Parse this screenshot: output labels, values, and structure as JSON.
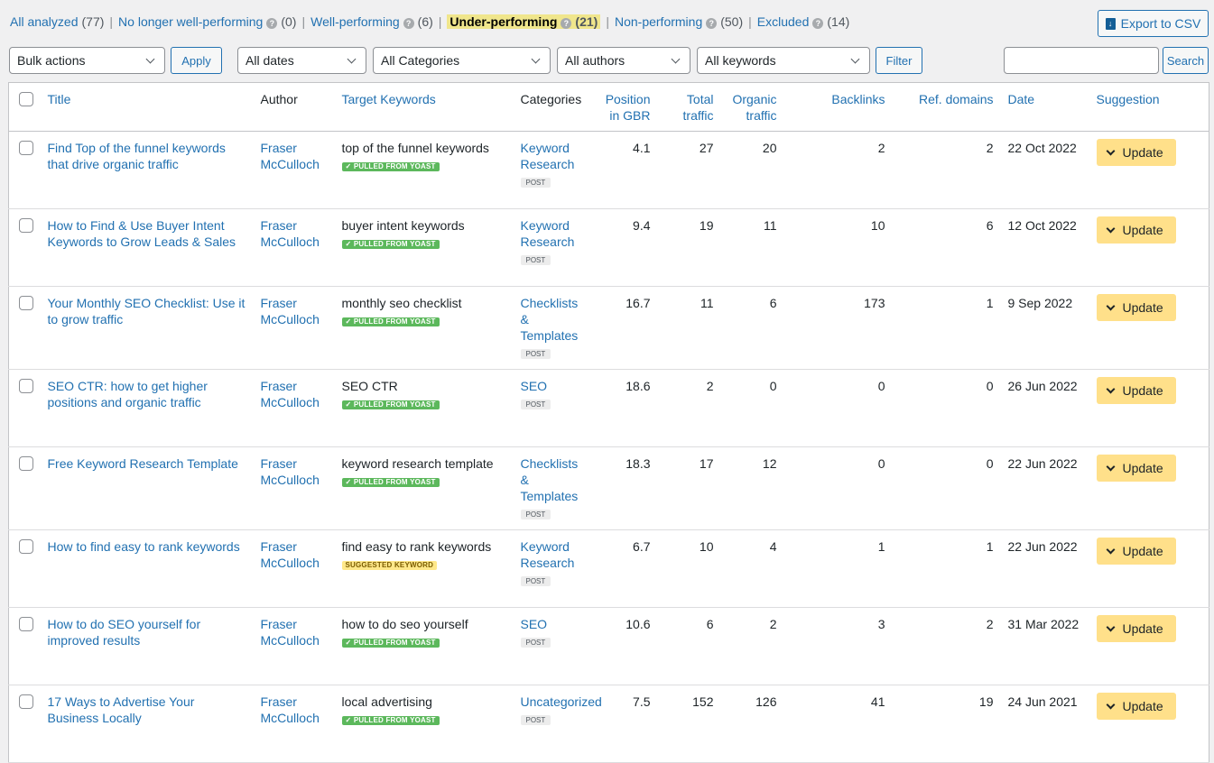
{
  "views": [
    {
      "label": "All analyzed",
      "count": "(77)",
      "help": false,
      "current": false
    },
    {
      "label": "No longer well-performing",
      "count": "(0)",
      "help": true,
      "current": false
    },
    {
      "label": "Well-performing",
      "count": "(6)",
      "help": true,
      "current": false
    },
    {
      "label": "Under-performing",
      "count": "(21)",
      "help": true,
      "current": true
    },
    {
      "label": "Non-performing",
      "count": "(50)",
      "help": true,
      "current": false
    },
    {
      "label": "Excluded",
      "count": "(14)",
      "help": true,
      "current": false
    }
  ],
  "export_label": "Export to CSV",
  "filters": {
    "bulk": "Bulk actions",
    "apply": "Apply",
    "dates": "All dates",
    "categories": "All Categories",
    "authors": "All authors",
    "keywords": "All keywords",
    "filter": "Filter",
    "search": "Search",
    "search_value": ""
  },
  "columns": {
    "title": "Title",
    "author": "Author",
    "keywords": "Target Keywords",
    "categories": "Categories",
    "position": "Position in GBR",
    "total": "Total traffic",
    "organic": "Organic traffic",
    "backlinks": "Backlinks",
    "ref": "Ref. domains",
    "date": "Date",
    "suggestion": "Suggestion"
  },
  "rows": [
    {
      "title": "Find Top of the funnel keywords that drive organic traffic",
      "author": "Fraser McCulloch",
      "keyword": "top of the funnel keywords",
      "badge": "✓ PULLED FROM YOAST",
      "badge_type": "g",
      "category": "Keyword Research",
      "type": "POST",
      "position": "4.1",
      "total": "27",
      "organic": "20",
      "backlinks": "2",
      "ref": "2",
      "date": "22 Oct 2022",
      "action": "Update"
    },
    {
      "title": "How to Find & Use Buyer Intent Keywords to Grow Leads & Sales",
      "author": "Fraser McCulloch",
      "keyword": "buyer intent keywords",
      "badge": "✓ PULLED FROM YOAST",
      "badge_type": "g",
      "category": "Keyword Research",
      "type": "POST",
      "position": "9.4",
      "total": "19",
      "organic": "11",
      "backlinks": "10",
      "ref": "6",
      "date": "12 Oct 2022",
      "action": "Update"
    },
    {
      "title": "Your Monthly SEO Checklist: Use it to grow traffic",
      "author": "Fraser McCulloch",
      "keyword": "monthly seo checklist",
      "badge": "✓ PULLED FROM YOAST",
      "badge_type": "g",
      "category": "Checklists & Templates",
      "type": "POST",
      "position": "16.7",
      "total": "11",
      "organic": "6",
      "backlinks": "173",
      "ref": "1",
      "date": "9 Sep 2022",
      "action": "Update"
    },
    {
      "title": "SEO CTR: how to get higher positions and organic traffic",
      "author": "Fraser McCulloch",
      "keyword": "SEO CTR",
      "badge": "✓ PULLED FROM YOAST",
      "badge_type": "g",
      "category": "SEO",
      "type": "POST",
      "position": "18.6",
      "total": "2",
      "organic": "0",
      "backlinks": "0",
      "ref": "0",
      "date": "26 Jun 2022",
      "action": "Update"
    },
    {
      "title": "Free Keyword Research Template",
      "author": "Fraser McCulloch",
      "keyword": "keyword research template",
      "badge": "✓ PULLED FROM YOAST",
      "badge_type": "g",
      "category": "Checklists & Templates",
      "type": "POST",
      "position": "18.3",
      "total": "17",
      "organic": "12",
      "backlinks": "0",
      "ref": "0",
      "date": "22 Jun 2022",
      "action": "Update"
    },
    {
      "title": "How to find easy to rank keywords",
      "author": "Fraser McCulloch",
      "keyword": "find easy to rank keywords",
      "badge": "SUGGESTED KEYWORD",
      "badge_type": "y",
      "category": "Keyword Research",
      "type": "POST",
      "position": "6.7",
      "total": "10",
      "organic": "4",
      "backlinks": "1",
      "ref": "1",
      "date": "22 Jun 2022",
      "action": "Update"
    },
    {
      "title": "How to do SEO yourself for improved results",
      "author": "Fraser McCulloch",
      "keyword": "how to do seo yourself",
      "badge": "✓ PULLED FROM YOAST",
      "badge_type": "g",
      "category": "SEO",
      "type": "POST",
      "position": "10.6",
      "total": "6",
      "organic": "2",
      "backlinks": "3",
      "ref": "2",
      "date": "31 Mar 2022",
      "action": "Update"
    },
    {
      "title": "17 Ways to Advertise Your Business Locally",
      "author": "Fraser McCulloch",
      "keyword": "local advertising",
      "badge": "✓ PULLED FROM YOAST",
      "badge_type": "g",
      "category": "Uncategorized",
      "type": "POST",
      "position": "7.5",
      "total": "152",
      "organic": "126",
      "backlinks": "41",
      "ref": "19",
      "date": "24 Jun 2021",
      "action": "Update"
    }
  ]
}
